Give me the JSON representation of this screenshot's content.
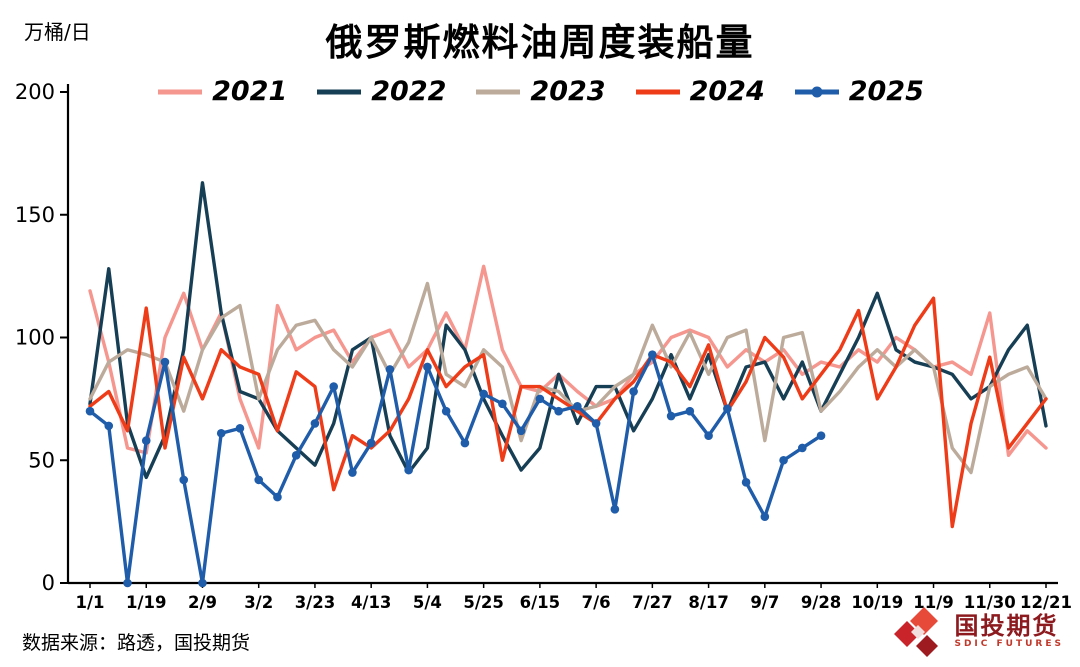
{
  "footer": {
    "source": "数据来源：路透，国投期货"
  },
  "logo": {
    "name": "国投期货",
    "sub": "SDIC FUTURES"
  },
  "chart_data": {
    "type": "line",
    "title": "俄罗斯燃料油周度装船量",
    "ylabel": "万桶/日",
    "xlabel": "",
    "ylim": [
      0,
      200
    ],
    "yticks": [
      0,
      50,
      100,
      150,
      200
    ],
    "grid": false,
    "legend_position": "top",
    "n_points": 52,
    "x_tick_step": 3,
    "x_tick_labels": [
      "1/1",
      "1/19",
      "2/9",
      "3/2",
      "3/23",
      "4/13",
      "5/4",
      "5/25",
      "6/15",
      "7/6",
      "7/27",
      "8/17",
      "9/7",
      "9/28",
      "10/19",
      "11/9",
      "11/30",
      "12/21"
    ],
    "series": [
      {
        "name": "2021",
        "color": "#F5968F",
        "marker": false,
        "values": [
          119,
          90,
          55,
          53,
          100,
          118,
          95,
          110,
          75,
          55,
          113,
          95,
          100,
          103,
          90,
          100,
          103,
          88,
          95,
          110,
          95,
          129,
          95,
          80,
          78,
          85,
          78,
          72,
          75,
          85,
          90,
          100,
          103,
          100,
          88,
          95,
          90,
          95,
          85,
          90,
          88,
          95,
          90,
          100,
          95,
          88,
          90,
          85,
          110,
          52,
          62,
          55
        ]
      },
      {
        "name": "2022",
        "color": "#163E54",
        "marker": false,
        "values": [
          73,
          128,
          65,
          43,
          60,
          95,
          163,
          110,
          78,
          75,
          62,
          55,
          48,
          65,
          95,
          100,
          60,
          45,
          55,
          105,
          95,
          75,
          60,
          46,
          55,
          85,
          65,
          80,
          80,
          62,
          75,
          93,
          75,
          93,
          70,
          88,
          90,
          75,
          90,
          70,
          85,
          100,
          118,
          95,
          90,
          88,
          85,
          75,
          80,
          95,
          105,
          64
        ]
      },
      {
        "name": "2023",
        "color": "#BCAB9B",
        "marker": false,
        "values": [
          75,
          90,
          95,
          93,
          90,
          70,
          95,
          108,
          113,
          75,
          95,
          105,
          107,
          95,
          88,
          100,
          85,
          98,
          122,
          85,
          80,
          95,
          88,
          58,
          80,
          78,
          70,
          72,
          80,
          85,
          105,
          88,
          102,
          85,
          100,
          103,
          58,
          100,
          102,
          70,
          78,
          88,
          95,
          88,
          95,
          88,
          55,
          45,
          80,
          85,
          88,
          75
        ]
      },
      {
        "name": "2024",
        "color": "#EE3B18",
        "marker": false,
        "values": [
          72,
          78,
          62,
          112,
          55,
          92,
          75,
          95,
          88,
          85,
          62,
          86,
          80,
          38,
          60,
          55,
          62,
          75,
          95,
          80,
          88,
          93,
          50,
          80,
          80,
          75,
          70,
          65,
          75,
          82,
          93,
          90,
          80,
          97,
          70,
          82,
          100,
          92,
          75,
          85,
          95,
          111,
          75,
          88,
          105,
          116,
          23,
          65,
          92,
          55,
          65,
          75
        ]
      },
      {
        "name": "2025",
        "color": "#1F5CA9",
        "marker": true,
        "values": [
          70,
          64,
          0,
          58,
          90,
          42,
          0,
          61,
          63,
          42,
          35,
          52,
          65,
          80,
          45,
          57,
          87,
          46,
          88,
          70,
          57,
          77,
          73,
          62,
          75,
          70,
          72,
          65,
          30,
          78,
          93,
          68,
          70,
          60,
          71,
          41,
          27,
          50,
          55,
          60
        ]
      }
    ]
  }
}
